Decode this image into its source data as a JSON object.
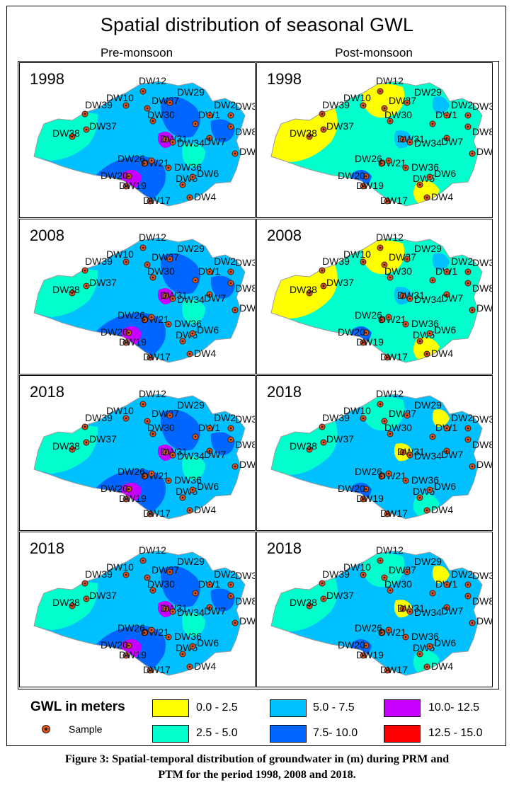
{
  "title": "Spatial distribution of seasonal GWL",
  "columns": [
    "Pre-monsoon",
    "Post-monsoon"
  ],
  "panels": [
    {
      "year": "1998",
      "season": "pre",
      "palette": {
        "base": "#00c0ff",
        "light": "#00ffcc",
        "dark": "#0066ff",
        "hot": "#c800ff"
      }
    },
    {
      "year": "1998",
      "season": "post",
      "palette": {
        "base": "#00ffcc",
        "light": "#ffff00",
        "dark": "#0066ff",
        "hot": "#00c0ff"
      }
    },
    {
      "year": "2008",
      "season": "pre",
      "palette": {
        "base": "#00c0ff",
        "light": "#00ffcc",
        "dark": "#0066ff",
        "hot": "#c800ff"
      }
    },
    {
      "year": "2008",
      "season": "post",
      "palette": {
        "base": "#00ffcc",
        "light": "#ffff00",
        "dark": "#0066ff",
        "hot": "#00c0ff"
      }
    },
    {
      "year": "2018",
      "season": "pre",
      "palette": {
        "base": "#00c0ff",
        "light": "#00ffcc",
        "dark": "#0066ff",
        "hot": "#c800ff"
      }
    },
    {
      "year": "2018",
      "season": "post",
      "palette": {
        "base": "#00c0ff",
        "light": "#00ffcc",
        "dark": "#0066ff",
        "hot": "#ffff00"
      }
    },
    {
      "year": "2018",
      "season": "pre",
      "palette": {
        "base": "#00c0ff",
        "light": "#00ffcc",
        "dark": "#0066ff",
        "hot": "#c800ff"
      }
    },
    {
      "year": "2018",
      "season": "post",
      "palette": {
        "base": "#00c0ff",
        "light": "#00ffcc",
        "dark": "#0066ff",
        "hot": "#ffff00"
      }
    }
  ],
  "wells": [
    "DW1",
    "DW2",
    "DW3",
    "DW4",
    "DW5",
    "DW6",
    "DW7",
    "DW8",
    "DW9",
    "DW10",
    "DW12",
    "DW17",
    "DW19",
    "DW20",
    "DW21",
    "DW26",
    "DW27",
    "DW29",
    "DW30",
    "DW31",
    "DW34",
    "DW36",
    "DW37",
    "DW38",
    "DW39"
  ],
  "legend": {
    "title": "GWL in meters",
    "sample_label": "Sample",
    "classes": [
      {
        "label": "0.0 - 2.5",
        "color": "#ffff00"
      },
      {
        "label": "2.5 - 5.0",
        "color": "#00ffcc"
      },
      {
        "label": "5.0 - 7.5",
        "color": "#00c0ff"
      },
      {
        "label": "7.5- 10.0",
        "color": "#0066ff"
      },
      {
        "label": "10.0- 12.5",
        "color": "#c800ff"
      },
      {
        "label": "12.5 - 15.0",
        "color": "#ff0000"
      }
    ]
  },
  "caption": {
    "line1": "Figure 3: Spatial-temporal distribution of groundwater in (m) during PRM and",
    "line2": "PTM for the period 1998, 2008 and 2018."
  }
}
